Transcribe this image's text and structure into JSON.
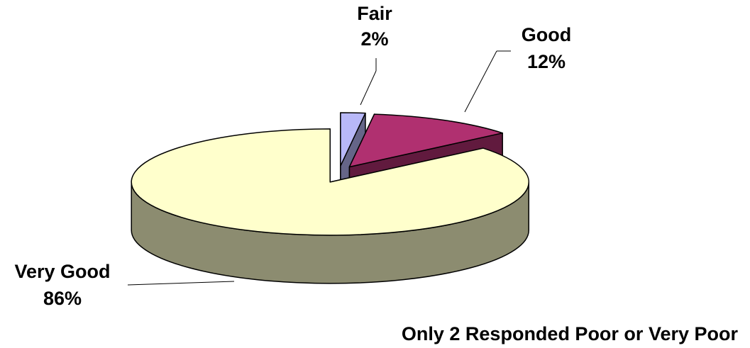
{
  "chart_data": {
    "type": "pie",
    "categories": [
      "Fair",
      "Good",
      "Very Good"
    ],
    "values": [
      2,
      12,
      86
    ],
    "value_labels": [
      "2%",
      "12%",
      "86%"
    ],
    "colors": [
      "#b8b8f8",
      "#b03070",
      "#ffffcc"
    ],
    "annotation": "Only 2 Responded Poor or Very Poor"
  }
}
